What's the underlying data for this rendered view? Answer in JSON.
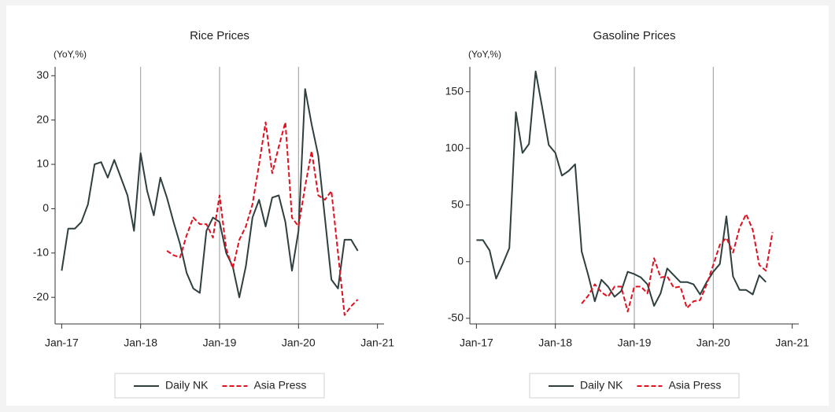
{
  "chart_data": [
    {
      "type": "line",
      "title": "Rice Prices",
      "y_label": "(YoY,%)",
      "xlim": [
        "2016-12",
        "2021-02"
      ],
      "xticks": [
        {
          "value": "2017-01",
          "label": "Jan-17"
        },
        {
          "value": "2018-01",
          "label": "Jan-18"
        },
        {
          "value": "2019-01",
          "label": "Jan-19"
        },
        {
          "value": "2020-01",
          "label": "Jan-20"
        },
        {
          "value": "2021-01",
          "label": "Jan-21"
        }
      ],
      "ylim": [
        -26,
        32
      ],
      "yticks": [
        -20,
        -10,
        0,
        10,
        20,
        30
      ],
      "grid": "x",
      "legend": "bottom",
      "series": [
        {
          "name": "Daily NK",
          "color": "#2f3f3f",
          "dash": "solid",
          "x": [
            "2017-01",
            "2017-02",
            "2017-03",
            "2017-04",
            "2017-05",
            "2017-06",
            "2017-07",
            "2017-08",
            "2017-09",
            "2017-10",
            "2017-11",
            "2017-12",
            "2018-01",
            "2018-02",
            "2018-03",
            "2018-04",
            "2018-05",
            "2018-06",
            "2018-07",
            "2018-08",
            "2018-09",
            "2018-10",
            "2018-11",
            "2018-12",
            "2019-01",
            "2019-02",
            "2019-03",
            "2019-04",
            "2019-05",
            "2019-06",
            "2019-07",
            "2019-08",
            "2019-09",
            "2019-10",
            "2019-11",
            "2019-12",
            "2020-01",
            "2020-02",
            "2020-03",
            "2020-04",
            "2020-05",
            "2020-06",
            "2020-07",
            "2020-08",
            "2020-09",
            "2020-10"
          ],
          "values": [
            -14,
            -4.5,
            -4.5,
            -3,
            1,
            10,
            10.5,
            7,
            11,
            7,
            3,
            -5,
            12.5,
            4,
            -1.5,
            7,
            2.5,
            -3,
            -8,
            -14.5,
            -18,
            -19,
            -5,
            -2,
            -3,
            -10,
            -13,
            -20,
            -13,
            -2,
            2,
            -4,
            2.5,
            3,
            -3,
            -14,
            -5,
            27,
            19,
            12,
            -2,
            -16,
            -18,
            -7,
            -7,
            -9.5
          ]
        },
        {
          "name": "Asia Press",
          "color": "#e0101e",
          "dash": "dashed",
          "x": [
            "2018-05",
            "2018-06",
            "2018-07",
            "2018-08",
            "2018-09",
            "2018-10",
            "2018-11",
            "2018-12",
            "2019-01",
            "2019-02",
            "2019-03",
            "2019-04",
            "2019-05",
            "2019-06",
            "2019-07",
            "2019-08",
            "2019-09",
            "2019-10",
            "2019-11",
            "2019-12",
            "2020-01",
            "2020-02",
            "2020-03",
            "2020-04",
            "2020-05",
            "2020-06",
            "2020-07",
            "2020-08",
            "2020-09",
            "2020-10"
          ],
          "values": [
            -9.5,
            -10.5,
            -11,
            -6,
            -2,
            -3.5,
            -3.5,
            -6.5,
            3,
            -9,
            -13.5,
            -7,
            -4,
            1,
            10,
            19.5,
            8,
            14,
            19.5,
            -2,
            -4,
            5,
            13,
            3,
            2,
            4,
            -10,
            -24,
            -22,
            -20.5
          ]
        }
      ]
    },
    {
      "type": "line",
      "title": "Gasoline Prices",
      "y_label": "(YoY,%)",
      "xlim": [
        "2016-12",
        "2021-02"
      ],
      "xticks": [
        {
          "value": "2017-01",
          "label": "Jan-17"
        },
        {
          "value": "2018-01",
          "label": "Jan-18"
        },
        {
          "value": "2019-01",
          "label": "Jan-19"
        },
        {
          "value": "2020-01",
          "label": "Jan-20"
        },
        {
          "value": "2021-01",
          "label": "Jan-21"
        }
      ],
      "ylim": [
        -55,
        172
      ],
      "yticks": [
        -50,
        0,
        50,
        100,
        150
      ],
      "grid": "x",
      "legend": "bottom",
      "series": [
        {
          "name": "Daily NK",
          "color": "#2f3f3f",
          "dash": "solid",
          "x": [
            "2017-01",
            "2017-02",
            "2017-03",
            "2017-04",
            "2017-05",
            "2017-06",
            "2017-07",
            "2017-08",
            "2017-09",
            "2017-10",
            "2017-11",
            "2017-12",
            "2018-01",
            "2018-02",
            "2018-03",
            "2018-04",
            "2018-05",
            "2018-06",
            "2018-07",
            "2018-08",
            "2018-09",
            "2018-10",
            "2018-11",
            "2018-12",
            "2019-01",
            "2019-02",
            "2019-03",
            "2019-04",
            "2019-05",
            "2019-06",
            "2019-07",
            "2019-08",
            "2019-09",
            "2019-10",
            "2019-11",
            "2019-12",
            "2020-01",
            "2020-02",
            "2020-03",
            "2020-04",
            "2020-05",
            "2020-06",
            "2020-07",
            "2020-08",
            "2020-09"
          ],
          "values": [
            19,
            19,
            10,
            -15,
            -2,
            12,
            132,
            96,
            104,
            168,
            136,
            103,
            96,
            76,
            80,
            86,
            9,
            -12,
            -35,
            -16,
            -22,
            -31,
            -26,
            -9,
            -11,
            -14,
            -20,
            -39,
            -28,
            -6,
            -12,
            -18,
            -18,
            -20,
            -29,
            -18,
            -9,
            -2,
            40,
            -13,
            -25,
            -25,
            -29,
            -12,
            -18
          ]
        },
        {
          "name": "Asia Press",
          "color": "#e0101e",
          "dash": "dashed",
          "x": [
            "2018-05",
            "2018-06",
            "2018-07",
            "2018-08",
            "2018-09",
            "2018-10",
            "2018-11",
            "2018-12",
            "2019-01",
            "2019-02",
            "2019-03",
            "2019-04",
            "2019-05",
            "2019-06",
            "2019-07",
            "2019-08",
            "2019-09",
            "2019-10",
            "2019-11",
            "2019-12",
            "2020-01",
            "2020-02",
            "2020-03",
            "2020-04",
            "2020-05",
            "2020-06",
            "2020-07",
            "2020-08",
            "2020-09",
            "2020-10"
          ],
          "values": [
            -37,
            -30,
            -20,
            -27,
            -31,
            -22,
            -22,
            -44,
            -22,
            -22,
            -28,
            3,
            -14,
            -13,
            -23,
            -22,
            -41,
            -35,
            -34,
            -20,
            -3,
            15,
            21,
            8,
            30,
            42,
            28,
            -3,
            -8,
            26
          ]
        }
      ]
    }
  ]
}
